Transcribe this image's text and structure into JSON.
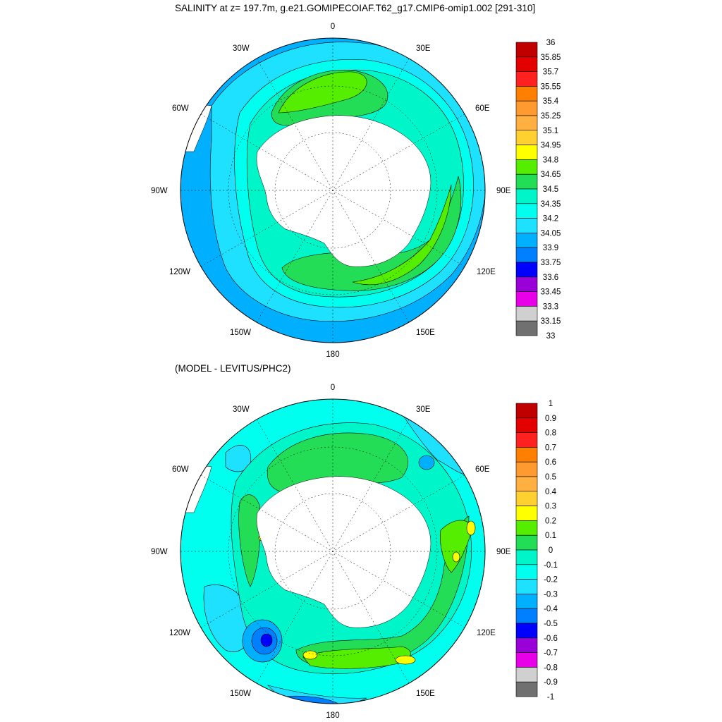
{
  "titles": {
    "top": "SALINITY at z= 197.7m, g.e21.GOMIPECOIAF.T62_g17.CMIP6-omip1.002 [291-310]",
    "bottom": "(MODEL - LEVITUS/PHC2)"
  },
  "longitude_labels": [
    "0",
    "30E",
    "60E",
    "90E",
    "120E",
    "150E",
    "180",
    "150W",
    "120W",
    "90W",
    "60W",
    "30W"
  ],
  "panels": [
    {
      "id": "salinity",
      "colorbar_labels": [
        "36",
        "35.85",
        "35.7",
        "35.55",
        "35.4",
        "35.25",
        "35.1",
        "34.95",
        "34.8",
        "34.65",
        "34.5",
        "34.35",
        "34.2",
        "34.05",
        "33.9",
        "33.75",
        "33.6",
        "33.45",
        "33.3",
        "33.15",
        "33"
      ],
      "colorbar_colors": [
        "#c00000",
        "#e50000",
        "#ff2020",
        "#ff8000",
        "#ff9a30",
        "#ffb040",
        "#ffd030",
        "#ffff00",
        "#55ee00",
        "#22dd55",
        "#00f5c8",
        "#00ffee",
        "#1ee0ff",
        "#00b0ff",
        "#0080ff",
        "#0000ff",
        "#9a00d8",
        "#e800e8",
        "#d0d0d0",
        "#707070"
      ]
    },
    {
      "id": "difference",
      "colorbar_labels": [
        "1",
        "0.9",
        "0.8",
        "0.7",
        "0.6",
        "0.5",
        "0.4",
        "0.3",
        "0.2",
        "0.1",
        "0",
        "-0.1",
        "-0.2",
        "-0.3",
        "-0.4",
        "-0.5",
        "-0.6",
        "-0.7",
        "-0.8",
        "-0.9",
        "-1"
      ],
      "colorbar_colors": [
        "#c00000",
        "#e50000",
        "#ff2020",
        "#ff8000",
        "#ff9a30",
        "#ffb040",
        "#ffd030",
        "#ffff00",
        "#55ee00",
        "#22dd55",
        "#00f5c8",
        "#00ffee",
        "#1ee0ff",
        "#00b0ff",
        "#0080ff",
        "#0000ff",
        "#9a00d8",
        "#e800e8",
        "#d0d0d0",
        "#707070"
      ]
    }
  ]
}
